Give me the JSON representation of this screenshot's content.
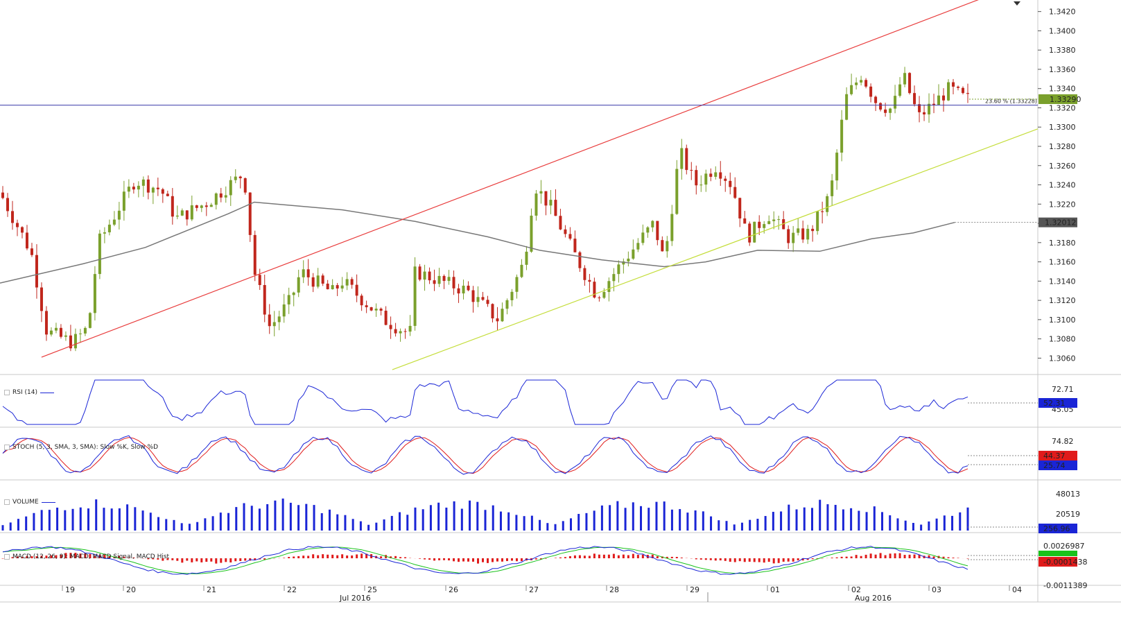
{
  "chart_data": {
    "type": "candlestick",
    "instrument_interval": "hourly",
    "price_axis": {
      "ticks": [
        "1.3060",
        "1.3080",
        "1.3100",
        "1.3120",
        "1.3140",
        "1.3160",
        "1.3180",
        "1.3200",
        "1.3220",
        "1.3240",
        "1.3260",
        "1.3280",
        "1.3300",
        "1.3320",
        "1.3340",
        "1.3360",
        "1.3380",
        "1.3400",
        "1.3420"
      ],
      "range": [
        1.3043,
        1.3432
      ]
    },
    "last_price_label": "1.33290",
    "ma_label": "1.32012",
    "fib_label": "23.60 % (1.33228)",
    "fib_level": 1.33228,
    "x_axis": {
      "day_labels": [
        "19",
        "20",
        "21",
        "22",
        "25",
        "26",
        "27",
        "28",
        "29",
        "01",
        "02",
        "03",
        "04"
      ],
      "month_labels": [
        "Jul 2016",
        "Aug 2016"
      ]
    },
    "candles_sample": [
      {
        "o": 1.323,
        "h": 1.3238,
        "l": 1.3215,
        "c": 1.322
      },
      {
        "o": 1.3089,
        "h": 1.3118,
        "l": 1.3072,
        "c": 1.3082
      },
      {
        "o": 1.318,
        "h": 1.3262,
        "l": 1.3166,
        "c": 1.3245
      },
      {
        "o": 1.3258,
        "h": 1.3294,
        "l": 1.3232,
        "c": 1.324
      },
      {
        "o": 1.315,
        "h": 1.3156,
        "l": 1.308,
        "c": 1.3092
      },
      {
        "o": 1.3082,
        "h": 1.3095,
        "l": 1.3058,
        "c": 1.3069
      },
      {
        "o": 1.325,
        "h": 1.3251,
        "l": 1.32,
        "c": 1.321
      },
      {
        "o": 1.312,
        "h": 1.314,
        "l": 1.3115,
        "c": 1.3135
      },
      {
        "o": 1.325,
        "h": 1.3303,
        "l": 1.322,
        "c": 1.327
      },
      {
        "o": 1.3205,
        "h": 1.3212,
        "l": 1.316,
        "c": 1.317
      },
      {
        "o": 1.3305,
        "h": 1.3363,
        "l": 1.329,
        "c": 1.335
      },
      {
        "o": 1.3362,
        "h": 1.3366,
        "l": 1.3322,
        "c": 1.333
      },
      {
        "o": 1.334,
        "h": 1.3373,
        "l": 1.3282,
        "c": 1.33
      },
      {
        "o": 1.333,
        "h": 1.3342,
        "l": 1.332,
        "c": 1.3329
      }
    ],
    "channel_upper": [
      [
        0.04,
        1.3061
      ],
      [
        0.925,
        1.3425
      ]
    ],
    "channel_lower": [
      [
        0.378,
        1.3048
      ],
      [
        0.925,
        1.3268
      ]
    ],
    "moving_average": [
      [
        0,
        1.3138
      ],
      [
        0.08,
        1.3158
      ],
      [
        0.14,
        1.3175
      ],
      [
        0.22,
        1.321
      ],
      [
        0.245,
        1.3222
      ],
      [
        0.33,
        1.3214
      ],
      [
        0.4,
        1.3202
      ],
      [
        0.47,
        1.3186
      ],
      [
        0.52,
        1.3172
      ],
      [
        0.58,
        1.3162
      ],
      [
        0.64,
        1.3155
      ],
      [
        0.68,
        1.316
      ],
      [
        0.73,
        1.3172
      ],
      [
        0.79,
        1.3171
      ],
      [
        0.84,
        1.3184
      ],
      [
        0.88,
        1.319
      ],
      [
        0.92,
        1.3201
      ]
    ],
    "indicators": {
      "rsi": {
        "label": "RSI (14)",
        "ticks": [
          "72.71",
          "45.05"
        ],
        "last": "52.31"
      },
      "stoch": {
        "label": "STOCH (5, 3, SMA, 3, SMA): Slow %K, Slow %D",
        "ticks": [
          "74.82"
        ],
        "last_k": "25.74",
        "last_d": "44.37"
      },
      "volume": {
        "label": "VOLUME",
        "ticks": [
          "48013",
          "20519"
        ],
        "last": "256.96"
      },
      "macd": {
        "label": "MACD (12, 26, 9): MACD, MACD Signal, MACD Hist",
        "ticks": [
          "0.0026987",
          "-0.0011389"
        ],
        "last_macd": "0.0001438",
        "last_hist": "-0.0001438"
      }
    },
    "colors": {
      "bull": "#7aa02c",
      "bear": "#c0261c",
      "upper_line": "#e83a3a",
      "lower_line": "#c4dd3a",
      "ma": "#777777",
      "fib": "#3a3aa8",
      "rsi": "#1a25d6",
      "stoch_k": "#1a25d6",
      "stoch_d": "#e01b1b",
      "volume": "#1a25d6",
      "macd": "#1a25d6",
      "signal": "#19c21b",
      "hist": "#e01b1b",
      "price_tag": "#7aa02c"
    }
  },
  "ui": {
    "dropdown_icon": "chevron-down-icon",
    "checkbox_icon": "checkbox-icon"
  }
}
